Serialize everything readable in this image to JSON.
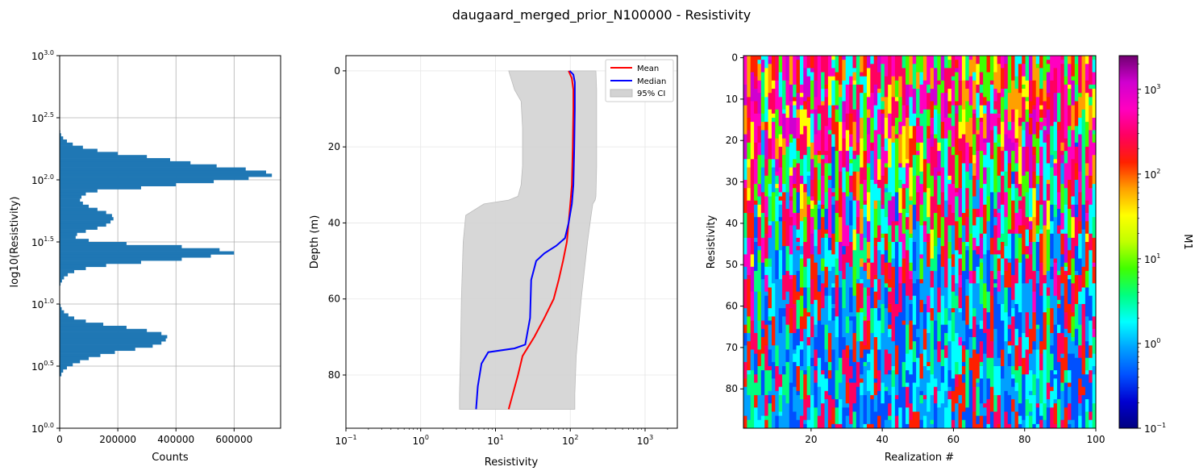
{
  "suptitle": "daugaard_merged_prior_N100000 - Resistivity",
  "colors": {
    "hist": "#1f77b4",
    "mean": "#ff0000",
    "median": "#0000ff",
    "ci": "#d3d3d3"
  },
  "chart_data": [
    {
      "type": "bar",
      "orientation": "horizontal",
      "name": "histogram",
      "xlabel": "Counts",
      "ylabel": "log10(Resistivity)",
      "xlim": [
        0,
        760000
      ],
      "xticks": [
        0,
        200000,
        400000,
        600000
      ],
      "xtick_labels": [
        "0",
        "200000",
        "400000",
        "600000"
      ],
      "ylim": [
        0.0,
        3.0
      ],
      "ytick_base": "10",
      "yticks": [
        0.0,
        0.5,
        1.0,
        1.5,
        2.0,
        2.5,
        3.0
      ],
      "ytick_exponents": [
        "0.0",
        "0.5",
        "1.0",
        "1.5",
        "2.0",
        "2.5",
        "3.0"
      ],
      "grid": true,
      "bin_width": 0.025,
      "bins": [
        [
          0.42,
          0.45,
          6000
        ],
        [
          0.45,
          0.475,
          12000
        ],
        [
          0.475,
          0.5,
          25000
        ],
        [
          0.5,
          0.525,
          45000
        ],
        [
          0.525,
          0.55,
          70000
        ],
        [
          0.55,
          0.575,
          100000
        ],
        [
          0.575,
          0.6,
          140000
        ],
        [
          0.6,
          0.625,
          190000
        ],
        [
          0.625,
          0.65,
          260000
        ],
        [
          0.65,
          0.675,
          320000
        ],
        [
          0.675,
          0.7,
          350000
        ],
        [
          0.7,
          0.725,
          365000
        ],
        [
          0.725,
          0.75,
          370000
        ],
        [
          0.75,
          0.775,
          350000
        ],
        [
          0.775,
          0.8,
          300000
        ],
        [
          0.8,
          0.825,
          230000
        ],
        [
          0.825,
          0.85,
          150000
        ],
        [
          0.85,
          0.875,
          90000
        ],
        [
          0.875,
          0.9,
          50000
        ],
        [
          0.9,
          0.925,
          30000
        ],
        [
          0.925,
          0.95,
          15000
        ],
        [
          0.95,
          0.975,
          7000
        ],
        [
          0.975,
          1.0,
          3000
        ],
        [
          1.15,
          1.175,
          3000
        ],
        [
          1.175,
          1.2,
          8000
        ],
        [
          1.2,
          1.225,
          15000
        ],
        [
          1.225,
          1.25,
          28000
        ],
        [
          1.25,
          1.275,
          50000
        ],
        [
          1.275,
          1.3,
          90000
        ],
        [
          1.3,
          1.325,
          160000
        ],
        [
          1.325,
          1.35,
          280000
        ],
        [
          1.35,
          1.375,
          420000
        ],
        [
          1.375,
          1.4,
          520000
        ],
        [
          1.4,
          1.425,
          600000
        ],
        [
          1.425,
          1.45,
          550000
        ],
        [
          1.45,
          1.475,
          420000
        ],
        [
          1.475,
          1.5,
          230000
        ],
        [
          1.5,
          1.525,
          100000
        ],
        [
          1.525,
          1.55,
          55000
        ],
        [
          1.55,
          1.575,
          60000
        ],
        [
          1.575,
          1.6,
          90000
        ],
        [
          1.6,
          1.625,
          130000
        ],
        [
          1.625,
          1.65,
          160000
        ],
        [
          1.65,
          1.675,
          175000
        ],
        [
          1.675,
          1.7,
          185000
        ],
        [
          1.7,
          1.725,
          180000
        ],
        [
          1.725,
          1.75,
          160000
        ],
        [
          1.75,
          1.775,
          130000
        ],
        [
          1.775,
          1.8,
          100000
        ],
        [
          1.8,
          1.825,
          80000
        ],
        [
          1.825,
          1.85,
          70000
        ],
        [
          1.85,
          1.875,
          75000
        ],
        [
          1.875,
          1.9,
          90000
        ],
        [
          1.9,
          1.925,
          130000
        ],
        [
          1.925,
          1.95,
          280000
        ],
        [
          1.95,
          1.975,
          400000
        ],
        [
          1.975,
          2.0,
          530000
        ],
        [
          2.0,
          2.025,
          650000
        ],
        [
          2.025,
          2.05,
          730000
        ],
        [
          2.05,
          2.075,
          710000
        ],
        [
          2.075,
          2.1,
          640000
        ],
        [
          2.1,
          2.125,
          540000
        ],
        [
          2.125,
          2.15,
          450000
        ],
        [
          2.15,
          2.175,
          380000
        ],
        [
          2.175,
          2.2,
          300000
        ],
        [
          2.2,
          2.225,
          200000
        ],
        [
          2.225,
          2.25,
          130000
        ],
        [
          2.25,
          2.275,
          80000
        ],
        [
          2.275,
          2.3,
          45000
        ],
        [
          2.3,
          2.325,
          25000
        ],
        [
          2.325,
          2.35,
          12000
        ],
        [
          2.35,
          2.375,
          5000
        ],
        [
          2.375,
          2.4,
          2000
        ]
      ]
    },
    {
      "type": "line",
      "name": "profile",
      "xlabel": "Resistivity",
      "ylabel": "Depth (m)",
      "xscale": "log",
      "xlim": [
        0.1,
        2700
      ],
      "xticks": [
        0.1,
        1,
        10,
        100,
        1000
      ],
      "xtick_base": "10",
      "xtick_exponents": [
        "−1",
        "0",
        "1",
        "2",
        "3"
      ],
      "ylim": [
        94,
        -4
      ],
      "yticks": [
        0,
        20,
        40,
        60,
        80
      ],
      "ytick_labels": [
        "0",
        "20",
        "40",
        "60",
        "80"
      ],
      "grid": true,
      "legend": {
        "placement": "upper right",
        "entries": [
          "Mean",
          "Median",
          "95% CI"
        ]
      },
      "series": [
        {
          "name": "Mean",
          "x": [
            95,
            105,
            110,
            110,
            108,
            105,
            100,
            95,
            90,
            80,
            70,
            60,
            45,
            33,
            23,
            20,
            15
          ],
          "y": [
            0,
            2,
            5,
            10,
            20,
            30,
            35,
            40,
            45,
            50,
            55,
            60,
            65,
            70,
            75,
            80,
            89
          ]
        },
        {
          "name": "Median",
          "x": [
            98,
            110,
            115,
            115,
            113,
            110,
            105,
            95,
            85,
            65,
            45,
            35,
            30,
            29,
            25,
            18,
            8,
            6.5,
            5.8,
            5.5
          ],
          "y": [
            0,
            1,
            3,
            10,
            20,
            30,
            35,
            40,
            44,
            46,
            48,
            50,
            55,
            65,
            72,
            73,
            74,
            77,
            83,
            89
          ]
        },
        {
          "name": "95% CI",
          "lower_x": [
            15,
            18,
            22,
            23,
            23,
            22,
            20,
            15,
            7,
            4,
            3.7,
            3.5,
            3.4,
            3.3,
            3.3
          ],
          "upper_x": [
            220,
            225,
            225,
            225,
            225,
            222,
            220,
            215,
            200,
            190,
            170,
            140,
            120,
            115,
            115
          ],
          "y": [
            0,
            5,
            8,
            15,
            25,
            30,
            33,
            34,
            35,
            38,
            45,
            60,
            75,
            85,
            89
          ]
        }
      ]
    },
    {
      "type": "heatmap",
      "name": "realizations",
      "xlabel": "Realization #",
      "ylabel": "Resistivity",
      "xlim": [
        1,
        100
      ],
      "xticks": [
        20,
        40,
        60,
        80,
        100
      ],
      "xtick_labels": [
        "20",
        "40",
        "60",
        "80",
        "100"
      ],
      "ylim": [
        89,
        0
      ],
      "yticks": [
        0,
        10,
        20,
        30,
        40,
        50,
        60,
        70,
        80
      ],
      "ytick_labels": [
        "0",
        "10",
        "20",
        "30",
        "40",
        "50",
        "60",
        "70",
        "80"
      ],
      "n_realizations": 100,
      "n_depths": 90,
      "colormap_stops": [
        "#000080",
        "#0000d0",
        "#0050ff",
        "#00a0ff",
        "#00ffff",
        "#00ff80",
        "#40ff00",
        "#c0ff00",
        "#ffff00",
        "#ffa000",
        "#ff2000",
        "#ff0060",
        "#ff00c0",
        "#d000d0",
        "#700070"
      ],
      "colorbar": {
        "label": "M1",
        "scale": "log",
        "range": [
          0.1,
          2500
        ],
        "ticks": [
          0.1,
          1,
          10,
          100,
          1000
        ],
        "tick_base": "10",
        "tick_exponents": [
          "−1",
          "0",
          "1",
          "2",
          "3"
        ]
      }
    }
  ]
}
